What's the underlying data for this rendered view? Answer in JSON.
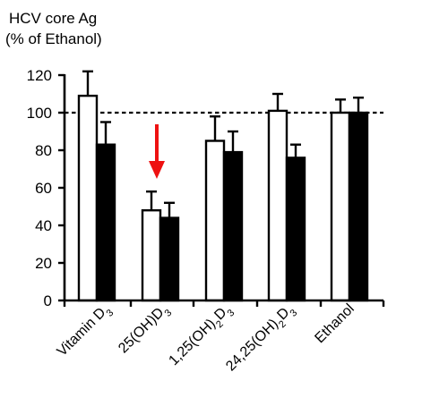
{
  "chart_data": {
    "type": "bar",
    "ylabel_lines": [
      "HCV core Ag",
      "(% of Ethanol)"
    ],
    "categories": [
      {
        "base": "Vitamin D",
        "sub": "3",
        "tail": ""
      },
      {
        "base": "25(OH)D",
        "sub": "3",
        "tail": ""
      },
      {
        "base": "1,25(OH)",
        "sub": "2",
        "tail": "D",
        "sub2": "3"
      },
      {
        "base": "24,25(OH)",
        "sub": "2",
        "tail": "D",
        "sub2": "3"
      },
      {
        "base": "Ethanol",
        "sub": "",
        "tail": ""
      }
    ],
    "series": [
      {
        "fill": "#ffffff",
        "values": [
          109,
          48,
          85,
          101,
          100
        ],
        "errors": [
          13,
          10,
          13,
          9,
          7
        ]
      },
      {
        "fill": "#000000",
        "values": [
          83,
          44,
          79,
          76,
          100
        ],
        "errors": [
          12,
          8,
          11,
          7,
          8
        ]
      }
    ],
    "ylim": [
      0,
      120
    ],
    "yticks": [
      0,
      20,
      40,
      60,
      80,
      100,
      120
    ],
    "reference_line": 100,
    "annotation": {
      "type": "arrow",
      "color": "#ee1111",
      "category_index": 1
    }
  }
}
